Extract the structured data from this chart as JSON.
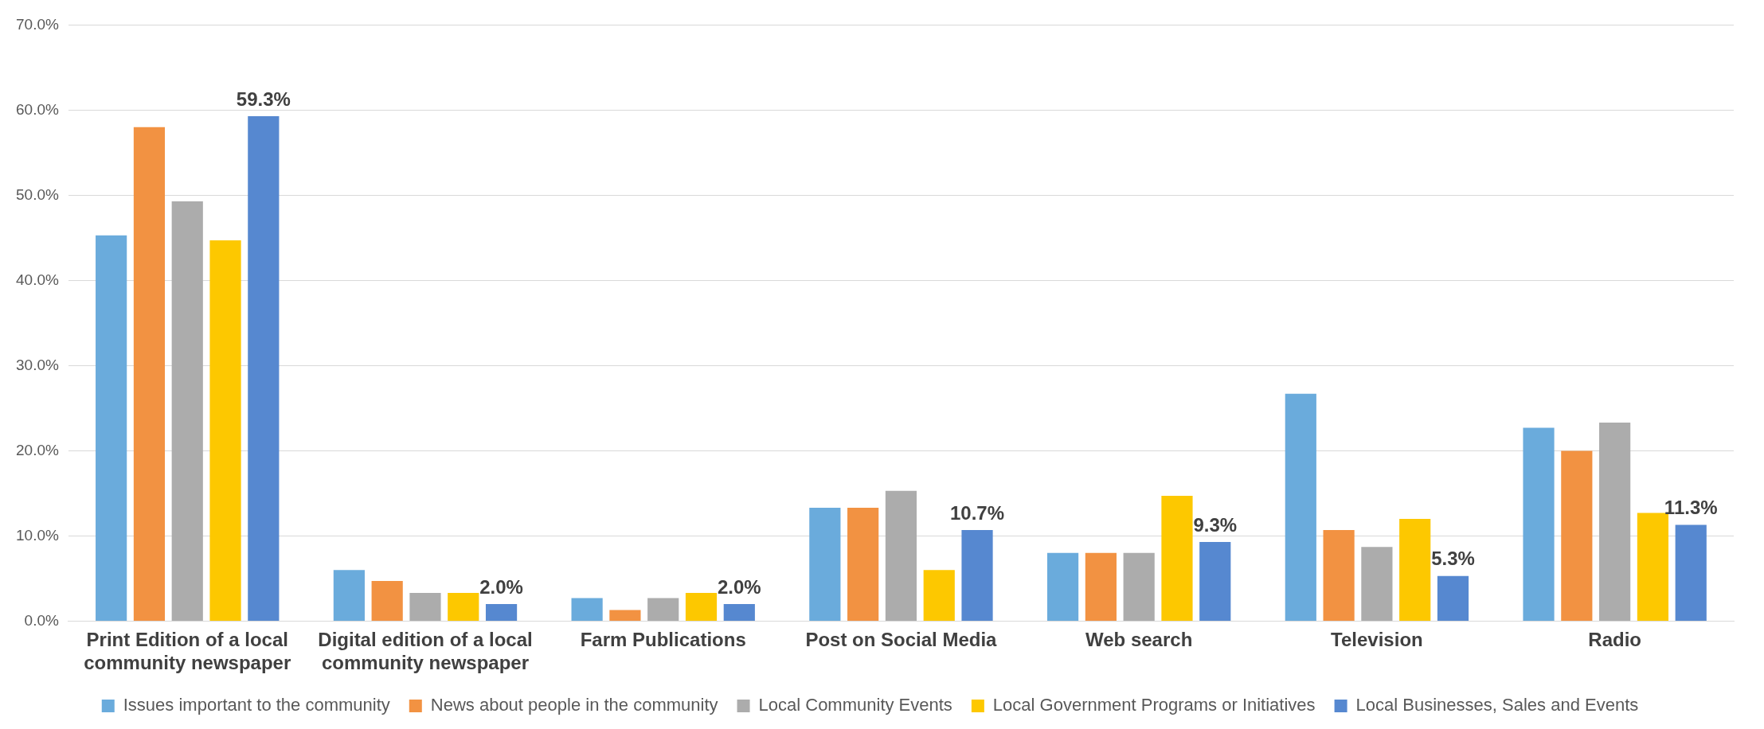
{
  "chart_data": {
    "type": "bar",
    "categories": [
      "Print Edition of a local community newspaper",
      "Digital edition of a local community newspaper",
      "Farm Publications",
      "Post on Social Media",
      "Web search",
      "Television",
      "Radio"
    ],
    "series": [
      {
        "name": "Issues important to the community",
        "color": "#6aabdc",
        "values": [
          45.3,
          6.0,
          2.7,
          13.3,
          8.0,
          26.7,
          22.7
        ]
      },
      {
        "name": "News about people in the community",
        "color": "#f29242",
        "values": [
          58.0,
          4.7,
          1.3,
          13.3,
          8.0,
          10.7,
          20.0
        ]
      },
      {
        "name": "Local Community Events",
        "color": "#acacac",
        "values": [
          49.3,
          3.3,
          2.7,
          15.3,
          8.0,
          8.7,
          23.3
        ]
      },
      {
        "name": "Local Government Programs or Initiatives",
        "color": "#fdc800",
        "values": [
          44.7,
          3.3,
          3.3,
          6.0,
          14.7,
          12.0,
          12.7
        ]
      },
      {
        "name": "Local Businesses, Sales and Events",
        "color": "#5688d0",
        "values": [
          59.3,
          2.0,
          2.0,
          10.7,
          9.3,
          5.3,
          11.3
        ],
        "value_labels": [
          "59.3%",
          "2.0%",
          "2.0%",
          "10.7%",
          "9.3%",
          "5.3%",
          "11.3%"
        ]
      }
    ],
    "ylim": [
      0,
      70
    ],
    "yticks": [
      {
        "value": 0,
        "label": "0.0%"
      },
      {
        "value": 10,
        "label": "10.0%"
      },
      {
        "value": 20,
        "label": "20.0%"
      },
      {
        "value": 30,
        "label": "30.0%"
      },
      {
        "value": 40,
        "label": "40.0%"
      },
      {
        "value": 50,
        "label": "50.0%"
      },
      {
        "value": 60,
        "label": "60.0%"
      },
      {
        "value": 70,
        "label": "70.0%"
      }
    ],
    "grid": "y",
    "legend": "bottom"
  }
}
